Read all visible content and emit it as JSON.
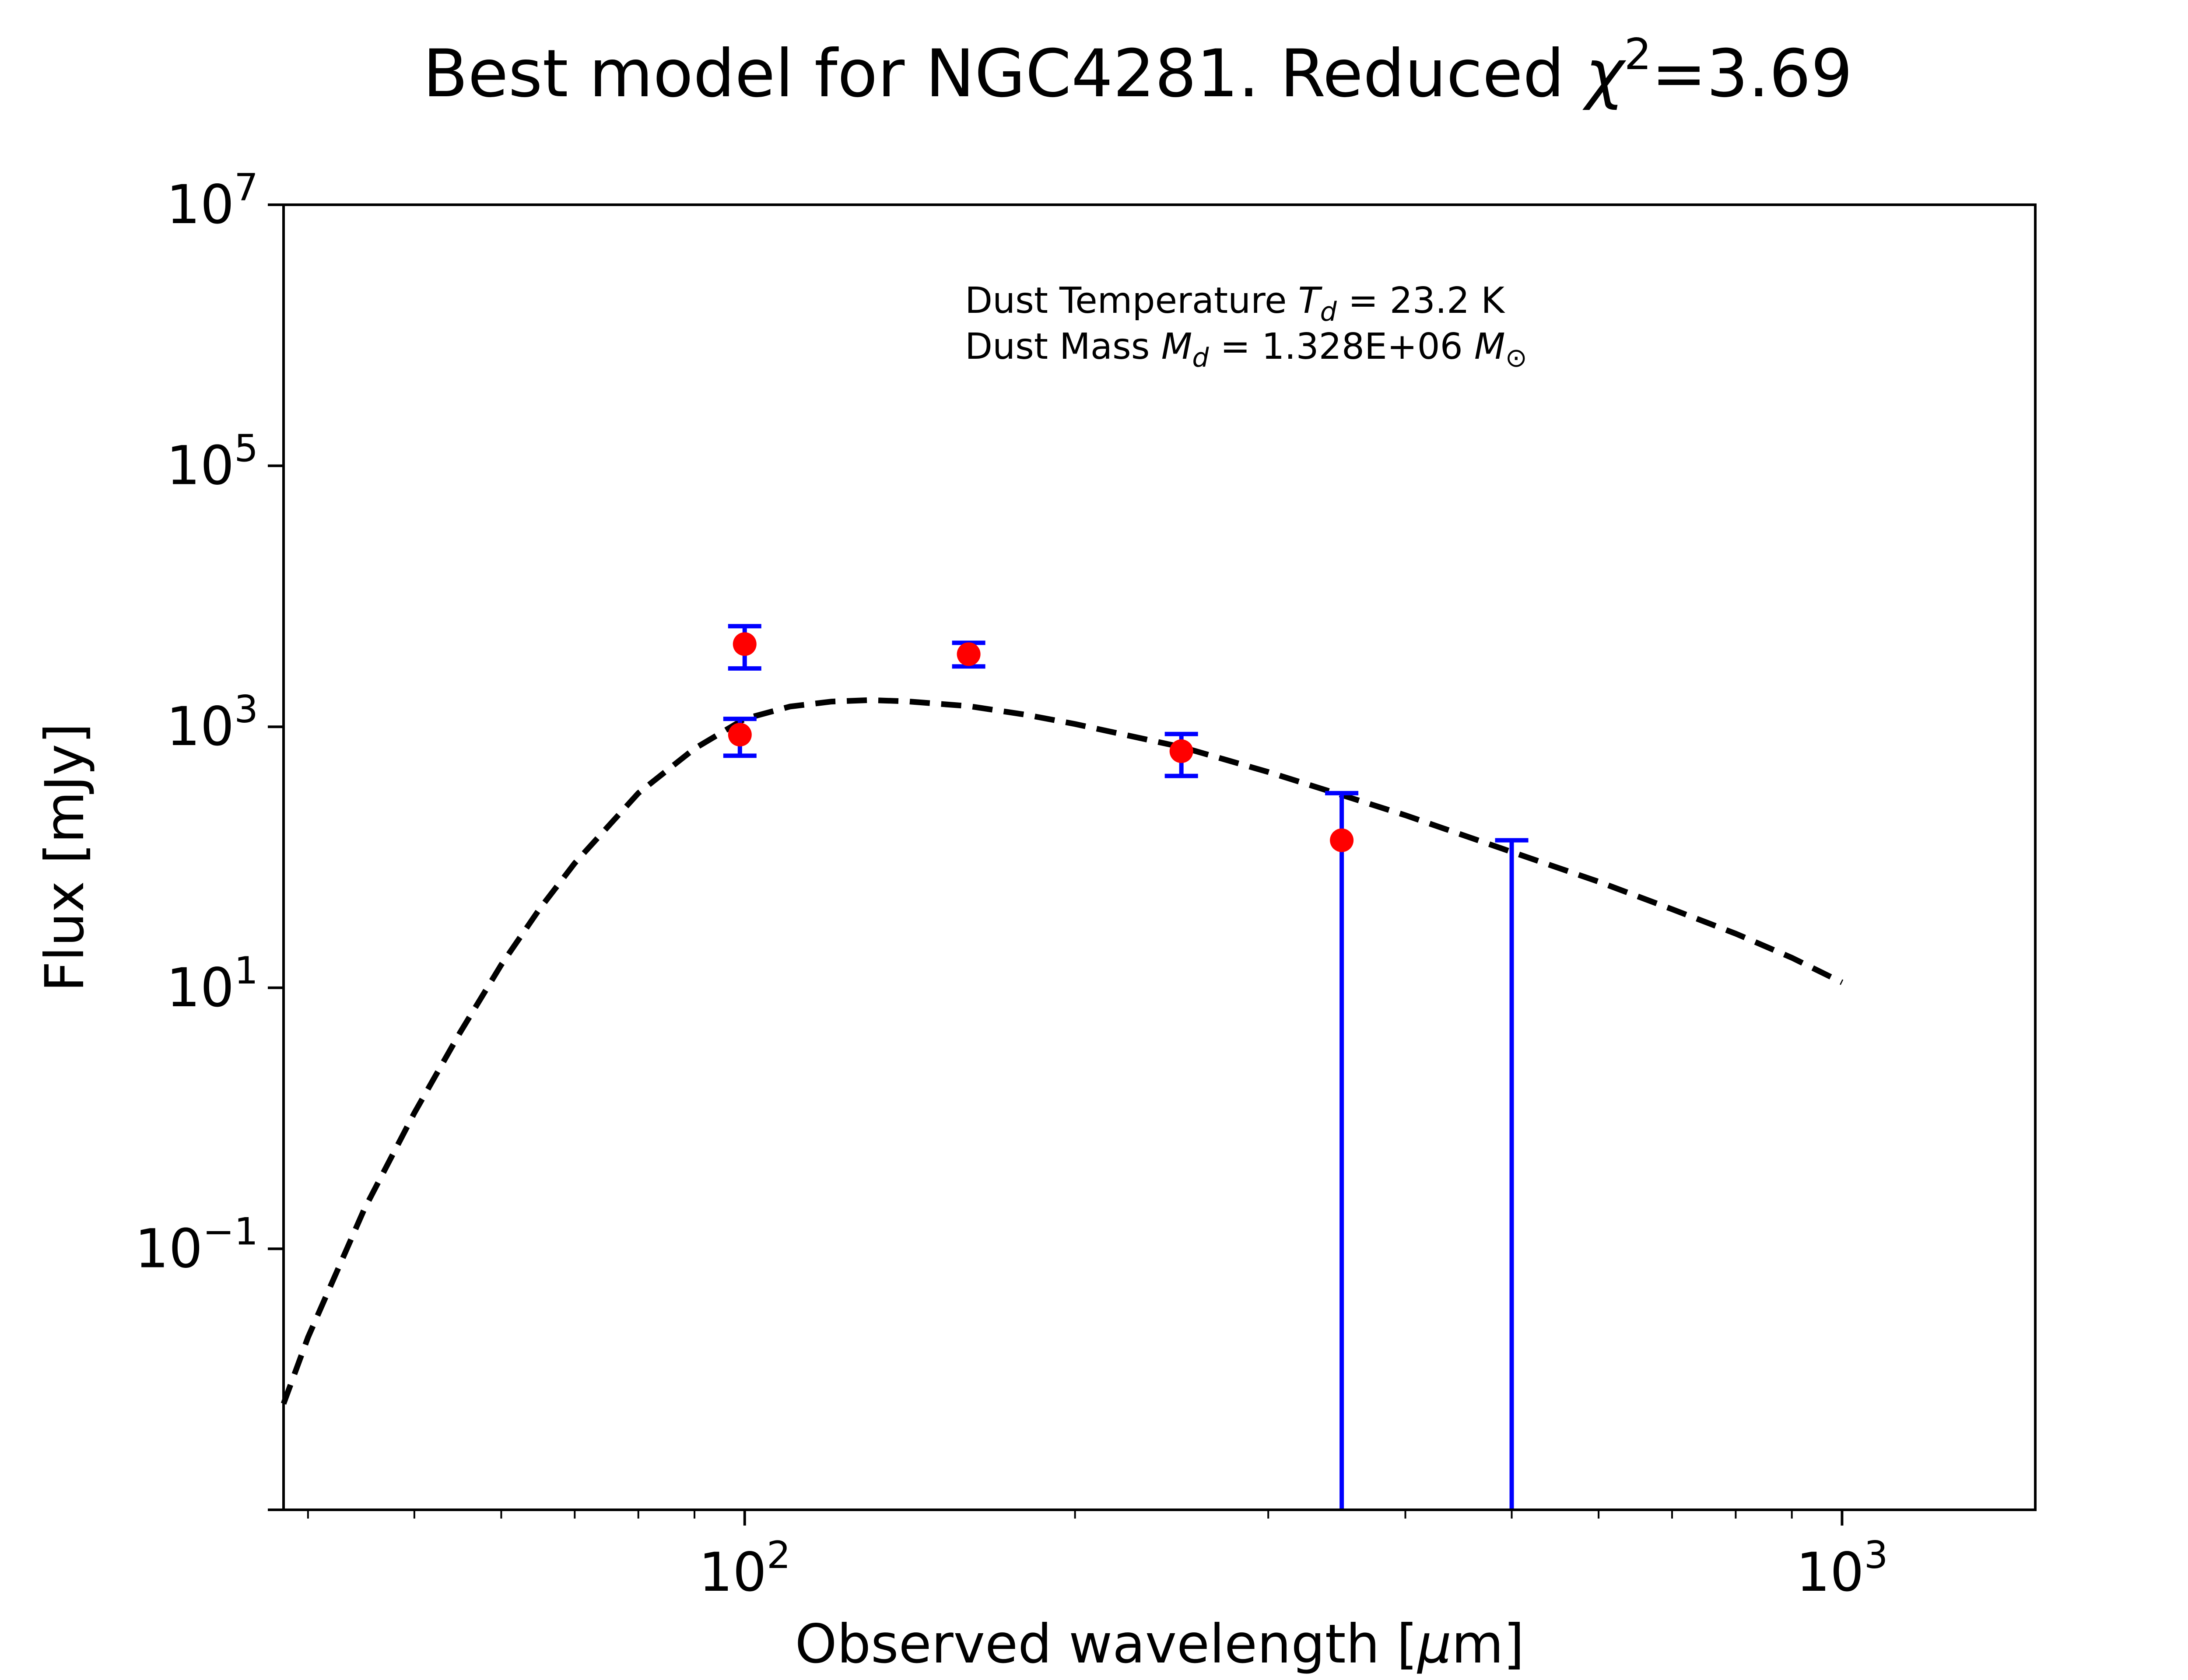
{
  "chart_data": {
    "type": "scatter",
    "title": {
      "prefix": "Best model for NGC4281. Reduced ",
      "chi_symbol": "χ",
      "chi_exponent": "2",
      "suffix": "=3.69"
    },
    "xlabel": {
      "prefix": "Observed wavelength [",
      "mu": "μ",
      "suffix": "m]"
    },
    "ylabel": "Flux [mJy]",
    "x_scale": "log",
    "y_scale": "log",
    "xlim": [
      38,
      1500
    ],
    "ylim": [
      0.001,
      10000000
    ],
    "x_ticks": [
      {
        "value": 100,
        "base": "10",
        "exp": "2"
      },
      {
        "value": 1000,
        "base": "10",
        "exp": "3"
      }
    ],
    "y_ticks": [
      {
        "value": 0.1,
        "base": "10",
        "exp": "−1"
      },
      {
        "value": 10,
        "base": "10",
        "exp": "1"
      },
      {
        "value": 1000,
        "base": "10",
        "exp": "3"
      },
      {
        "value": 100000,
        "base": "10",
        "exp": "5"
      },
      {
        "value": 10000000,
        "base": "10",
        "exp": "7"
      }
    ],
    "grid": false,
    "annotations": {
      "line1": {
        "prefix": "Dust Temperature ",
        "symbol": "T",
        "subscript": "d",
        "suffix": " = 23.2 K"
      },
      "line2": {
        "prefix": "Dust Mass ",
        "symbol": "M",
        "subscript": "d",
        "value": " = 1.328E+06 ",
        "unit_symbol": "M",
        "unit_subscript": "⊙"
      },
      "placement": "top-center"
    },
    "model": {
      "style": "dashed",
      "color": "#000000",
      "points": [
        {
          "x": 38,
          "y": 0.0065
        },
        {
          "x": 40,
          "y": 0.021
        },
        {
          "x": 45,
          "y": 0.2
        },
        {
          "x": 50,
          "y": 1.1
        },
        {
          "x": 55,
          "y": 4.5
        },
        {
          "x": 60,
          "y": 15
        },
        {
          "x": 65,
          "y": 40
        },
        {
          "x": 70,
          "y": 90
        },
        {
          "x": 80,
          "y": 310
        },
        {
          "x": 90,
          "y": 680
        },
        {
          "x": 100,
          "y": 1150
        },
        {
          "x": 110,
          "y": 1430
        },
        {
          "x": 120,
          "y": 1560
        },
        {
          "x": 130,
          "y": 1600
        },
        {
          "x": 140,
          "y": 1570
        },
        {
          "x": 160,
          "y": 1440
        },
        {
          "x": 180,
          "y": 1240
        },
        {
          "x": 200,
          "y": 1050
        },
        {
          "x": 250,
          "y": 700
        },
        {
          "x": 300,
          "y": 450
        },
        {
          "x": 350,
          "y": 300
        },
        {
          "x": 400,
          "y": 210
        },
        {
          "x": 500,
          "y": 110
        },
        {
          "x": 600,
          "y": 65
        },
        {
          "x": 700,
          "y": 40
        },
        {
          "x": 800,
          "y": 26
        },
        {
          "x": 900,
          "y": 17
        },
        {
          "x": 1000,
          "y": 11
        }
      ]
    },
    "observations": {
      "marker_color": "#ff0000",
      "errorbar_color": "#0000ff",
      "points": [
        {
          "x": 100,
          "y": 4300,
          "yerr_low": 2800,
          "yerr_high": 5900
        },
        {
          "x": 99,
          "y": 870,
          "yerr_low": 600,
          "yerr_high": 1150
        },
        {
          "x": 160,
          "y": 3600,
          "yerr_low": 2900,
          "yerr_high": 4400
        },
        {
          "x": 250,
          "y": 650,
          "yerr_low": 420,
          "yerr_high": 880
        },
        {
          "x": 350,
          "y": 135,
          "yerr_low": 0.001,
          "yerr_high": 310
        },
        {
          "x": 500,
          "y": null,
          "yerr_low": 0.001,
          "yerr_high": 135
        }
      ]
    }
  }
}
